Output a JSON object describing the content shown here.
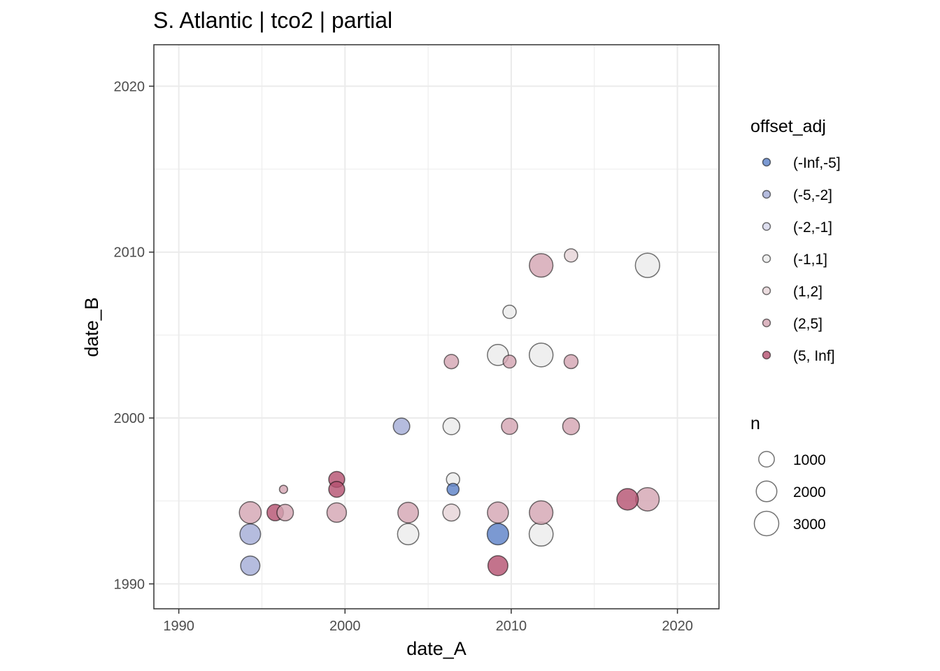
{
  "chart_data": {
    "type": "scatter",
    "title": "S. Atlantic | tco2 | partial",
    "xlabel": "date_A",
    "ylabel": "date_B",
    "xlim": [
      1988.5,
      2022.5
    ],
    "ylim": [
      1988.5,
      2022.5
    ],
    "x_ticks": [
      1990,
      2000,
      2010,
      2020
    ],
    "y_ticks": [
      1990,
      2000,
      2010,
      2020
    ],
    "grid": true,
    "colors": {
      "(-Inf,-5]": "#5a7fc7",
      "(-5,-2]": "#a2abd6",
      "(-2,-1]": "#d4d6ea",
      "(-1,1]": "#ebebeb",
      "(1,2]": "#e6d3d7",
      "(2,5]": "#d3a4b1",
      "(5, Inf]": "#b4506f"
    },
    "legend_color": {
      "title": "offset_adj",
      "entries": [
        "(-Inf,-5]",
        "(-5,-2]",
        "(-2,-1]",
        "(-1,1]",
        "(1,2]",
        "(2,5]",
        "(5, Inf]"
      ]
    },
    "legend_size": {
      "title": "n",
      "entries": [
        1000,
        2000,
        3000
      ]
    },
    "points": [
      {
        "x": 1994.3,
        "y": 1994.3,
        "n": 2300,
        "cat": "(2,5]"
      },
      {
        "x": 1994.3,
        "y": 1993.0,
        "n": 2000,
        "cat": "(-5,-2]"
      },
      {
        "x": 1994.3,
        "y": 1991.1,
        "n": 1700,
        "cat": "(-5,-2]"
      },
      {
        "x": 1995.8,
        "y": 1994.3,
        "n": 1150,
        "cat": "(5, Inf]"
      },
      {
        "x": 1996.4,
        "y": 1994.3,
        "n": 1150,
        "cat": "(2,5]"
      },
      {
        "x": 1996.3,
        "y": 1995.7,
        "n": 150,
        "cat": "(2,5]"
      },
      {
        "x": 1999.5,
        "y": 1996.3,
        "n": 1050,
        "cat": "(5, Inf]"
      },
      {
        "x": 1999.5,
        "y": 1995.7,
        "n": 1050,
        "cat": "(5, Inf]"
      },
      {
        "x": 1999.5,
        "y": 1994.3,
        "n": 1750,
        "cat": "(2,5]"
      },
      {
        "x": 2003.4,
        "y": 1999.5,
        "n": 1150,
        "cat": "(-5,-2]"
      },
      {
        "x": 2003.8,
        "y": 1994.3,
        "n": 2000,
        "cat": "(2,5]"
      },
      {
        "x": 2003.8,
        "y": 1993.0,
        "n": 2150,
        "cat": "(-1,1]"
      },
      {
        "x": 2006.4,
        "y": 2003.4,
        "n": 800,
        "cat": "(2,5]"
      },
      {
        "x": 2006.4,
        "y": 1999.5,
        "n": 1200,
        "cat": "(-1,1]"
      },
      {
        "x": 2006.5,
        "y": 1996.3,
        "n": 650,
        "cat": "(-1,1]"
      },
      {
        "x": 2006.5,
        "y": 1995.7,
        "n": 500,
        "cat": "(-Inf,-5]"
      },
      {
        "x": 2006.4,
        "y": 1994.3,
        "n": 1250,
        "cat": "(1,2]"
      },
      {
        "x": 2009.2,
        "y": 2003.8,
        "n": 2100,
        "cat": "(-1,1]"
      },
      {
        "x": 2009.9,
        "y": 2006.4,
        "n": 650,
        "cat": "(-1,1]"
      },
      {
        "x": 2009.9,
        "y": 2003.4,
        "n": 600,
        "cat": "(2,5]"
      },
      {
        "x": 2009.9,
        "y": 1999.5,
        "n": 1100,
        "cat": "(2,5]"
      },
      {
        "x": 2009.2,
        "y": 1994.3,
        "n": 2100,
        "cat": "(2,5]"
      },
      {
        "x": 2009.2,
        "y": 1993.0,
        "n": 2200,
        "cat": "(-Inf,-5]"
      },
      {
        "x": 2009.2,
        "y": 1991.1,
        "n": 1850,
        "cat": "(5, Inf]"
      },
      {
        "x": 2011.8,
        "y": 2009.2,
        "n": 2750,
        "cat": "(2,5]"
      },
      {
        "x": 2011.8,
        "y": 2003.8,
        "n": 2800,
        "cat": "(-1,1]"
      },
      {
        "x": 2011.8,
        "y": 1994.3,
        "n": 2750,
        "cat": "(2,5]"
      },
      {
        "x": 2011.8,
        "y": 1993.0,
        "n": 2850,
        "cat": "(-1,1]"
      },
      {
        "x": 2013.6,
        "y": 2009.8,
        "n": 650,
        "cat": "(1,2]"
      },
      {
        "x": 2013.6,
        "y": 2003.4,
        "n": 750,
        "cat": "(2,5]"
      },
      {
        "x": 2013.6,
        "y": 1999.5,
        "n": 1200,
        "cat": "(2,5]"
      },
      {
        "x": 2017.0,
        "y": 1995.1,
        "n": 2200,
        "cat": "(5, Inf]"
      },
      {
        "x": 2018.2,
        "y": 1995.1,
        "n": 2700,
        "cat": "(2,5]"
      },
      {
        "x": 2018.2,
        "y": 2009.2,
        "n": 2950,
        "cat": "(-1,1]"
      }
    ]
  }
}
